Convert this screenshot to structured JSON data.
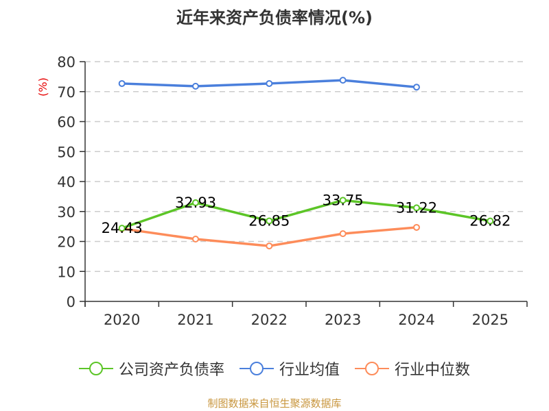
{
  "title": "近年来资产负债率情况(%)",
  "y_unit_label": "(%)",
  "footer": "制图数据来自恒生聚源数据库",
  "colors": {
    "company": "#5cc527",
    "industry_avg": "#4a7fdc",
    "industry_median": "#fd8c5a",
    "unit_label": "#e60000",
    "axis": "#333333",
    "grid": "#cccccc",
    "footer": "#c8963e"
  },
  "legend": [
    {
      "label": "公司资产负债率",
      "color": "#5cc527"
    },
    {
      "label": "行业均值",
      "color": "#4a7fdc"
    },
    {
      "label": "行业中位数",
      "color": "#fd8c5a"
    }
  ],
  "chart_data": {
    "type": "line",
    "title": "近年来资产负债率情况(%)",
    "xlabel": "",
    "ylabel": "(%)",
    "categories": [
      "2020",
      "2021",
      "2022",
      "2023",
      "2024",
      "2025"
    ],
    "ylim": [
      0,
      80
    ],
    "yticks": [
      0,
      10,
      20,
      30,
      40,
      50,
      60,
      70,
      80
    ],
    "grid": true,
    "legend_position": "bottom",
    "series": [
      {
        "name": "公司资产负债率",
        "color": "#5cc527",
        "values": [
          24.43,
          32.93,
          26.85,
          33.75,
          31.22,
          26.82
        ],
        "labels": true
      },
      {
        "name": "行业均值",
        "color": "#4a7fdc",
        "values": [
          72.7,
          71.8,
          72.7,
          73.8,
          71.5,
          null
        ],
        "labels": false
      },
      {
        "name": "行业中位数",
        "color": "#fd8c5a",
        "values": [
          24.3,
          20.8,
          18.5,
          22.6,
          24.7,
          null
        ],
        "labels": false
      }
    ]
  }
}
